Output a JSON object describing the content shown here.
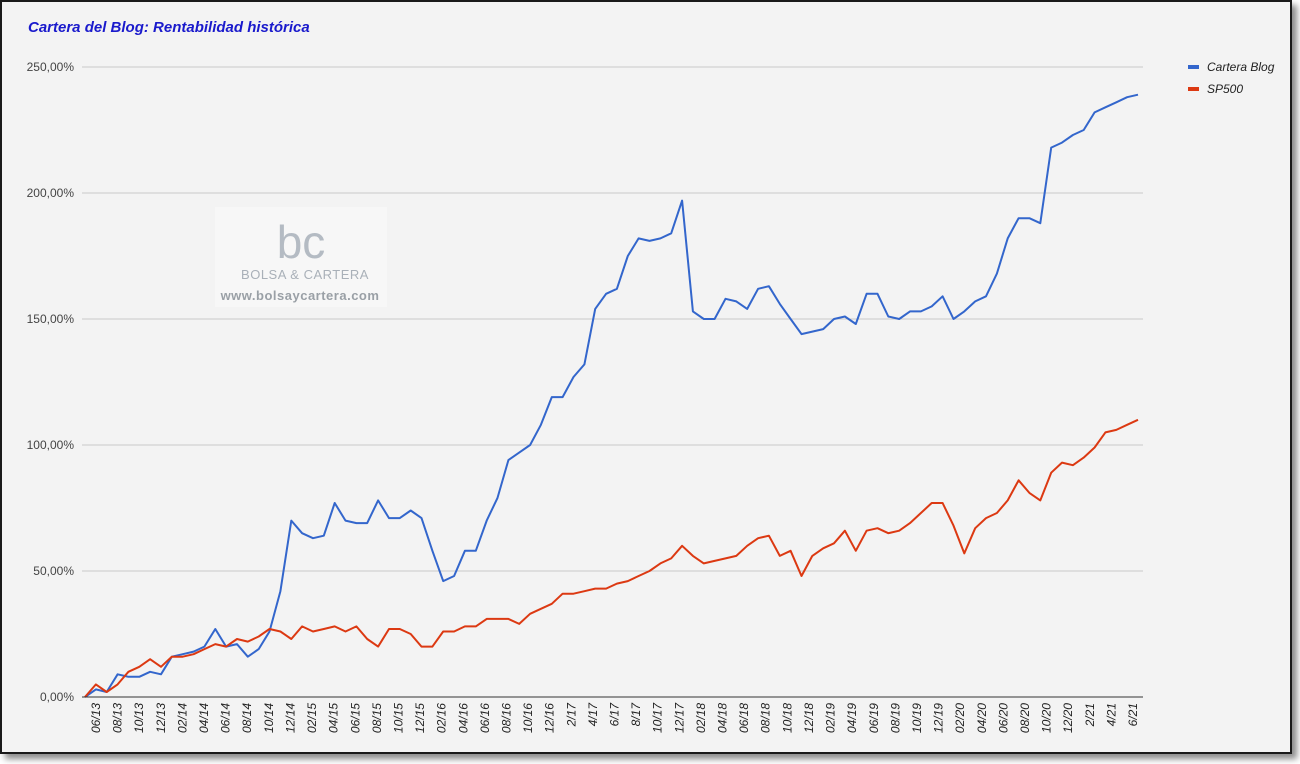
{
  "chart_data": {
    "type": "line",
    "title": "Cartera del Blog: Rentabilidad histórica",
    "ylim": [
      0,
      250
    ],
    "y_ticks": [
      "0,00%",
      "50,00%",
      "100,00%",
      "150,00%",
      "200,00%",
      "250,00%"
    ],
    "x_ticks": [
      "06/13",
      "08/13",
      "10/13",
      "12/13",
      "02/14",
      "04/14",
      "06/14",
      "08/14",
      "10/14",
      "12/14",
      "02/15",
      "04/15",
      "06/15",
      "08/15",
      "10/15",
      "12/15",
      "02/16",
      "04/16",
      "06/16",
      "08/16",
      "10/16",
      "12/16",
      "2/17",
      "4/17",
      "6/17",
      "8/17",
      "10/17",
      "12/17",
      "02/18",
      "04/18",
      "06/18",
      "08/18",
      "10/18",
      "12/18",
      "02/19",
      "04/19",
      "06/19",
      "08/19",
      "10/19",
      "12/19",
      "02/20",
      "04/20",
      "06/20",
      "08/20",
      "10/20",
      "12/20",
      "2/21",
      "4/21",
      "6/21"
    ],
    "grid": true,
    "legend_position": "top-right",
    "series": [
      {
        "name": "Cartera Blog",
        "color": "#3366cc",
        "values": [
          0,
          3,
          2,
          9,
          8,
          8,
          10,
          9,
          16,
          17,
          18,
          20,
          27,
          20,
          21,
          16,
          19,
          26,
          42,
          70,
          65,
          63,
          64,
          77,
          70,
          69,
          69,
          78,
          71,
          71,
          74,
          71,
          58,
          46,
          48,
          58,
          58,
          70,
          79,
          94,
          97,
          100,
          108,
          119,
          119,
          127,
          132,
          154,
          160,
          162,
          175,
          182,
          181,
          182,
          184,
          197,
          153,
          150,
          150,
          158,
          157,
          154,
          162,
          163,
          156,
          150,
          144,
          145,
          146,
          150,
          151,
          148,
          160,
          160,
          151,
          150,
          153,
          153,
          155,
          159,
          150,
          153,
          157,
          159,
          168,
          182,
          190,
          190,
          188,
          218,
          220,
          223,
          225,
          232,
          234,
          236,
          238,
          239
        ]
      },
      {
        "name": "SP500",
        "color": "#dc3912",
        "values": [
          0,
          5,
          2,
          5,
          10,
          12,
          15,
          12,
          16,
          16,
          17,
          19,
          21,
          20,
          23,
          22,
          24,
          27,
          26,
          23,
          28,
          26,
          27,
          28,
          26,
          28,
          23,
          20,
          27,
          27,
          25,
          20,
          20,
          26,
          26,
          28,
          28,
          31,
          31,
          31,
          29,
          33,
          35,
          37,
          41,
          41,
          42,
          43,
          43,
          45,
          46,
          48,
          50,
          53,
          55,
          60,
          56,
          53,
          54,
          55,
          56,
          60,
          63,
          64,
          56,
          58,
          48,
          56,
          59,
          61,
          66,
          58,
          66,
          67,
          65,
          66,
          69,
          73,
          77,
          77,
          68,
          57,
          67,
          71,
          73,
          78,
          86,
          81,
          78,
          89,
          93,
          92,
          95,
          99,
          105,
          106,
          108,
          110
        ]
      }
    ],
    "watermark": {
      "logo_text": "bc",
      "brand": "BOLSA & CARTERA",
      "url": "www.bolsaycartera.com"
    }
  }
}
